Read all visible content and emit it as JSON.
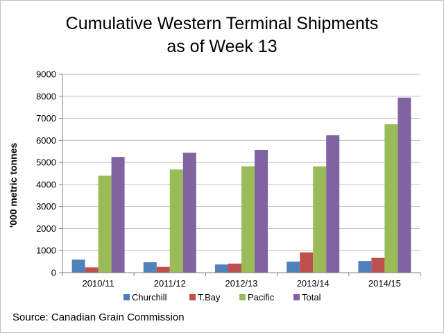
{
  "chart_data": {
    "type": "bar",
    "title_line1": "Cumulative Western Terminal Shipments",
    "title_line2": "as of Week 13",
    "ylabel": "'000 metric tonnes",
    "xlabel": "",
    "ylim": [
      0,
      9000
    ],
    "yticks": [
      0,
      1000,
      2000,
      3000,
      4000,
      5000,
      6000,
      7000,
      8000,
      9000
    ],
    "ytick_labels": [
      "0",
      "1000",
      "2000",
      "3000",
      "4000",
      "5000",
      "6000",
      "7000",
      "8000",
      "9000"
    ],
    "grid": true,
    "legend_position": "bottom",
    "categories": [
      "2010/11",
      "2011/12",
      "2012/13",
      "2013/14",
      "2014/15"
    ],
    "series": [
      {
        "name": "Churchill",
        "color": "#4f81bd",
        "values": [
          590,
          470,
          370,
          500,
          530
        ]
      },
      {
        "name": "T.Bay",
        "color": "#c0504d",
        "values": [
          240,
          260,
          410,
          920,
          670
        ]
      },
      {
        "name": "Pacific",
        "color": "#9bbb59",
        "values": [
          4400,
          4680,
          4820,
          4820,
          6730
        ]
      },
      {
        "name": "Total",
        "color": "#8064a2",
        "values": [
          5250,
          5440,
          5570,
          6230,
          7940
        ]
      }
    ]
  },
  "footer": {
    "source": "Source: Canadian Grain Commission"
  }
}
